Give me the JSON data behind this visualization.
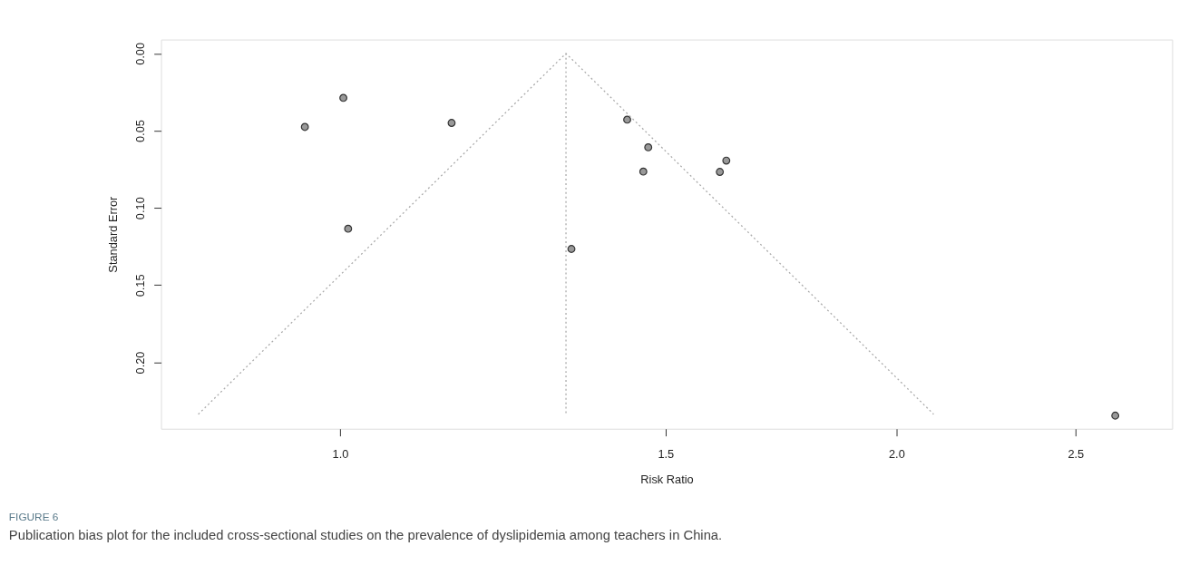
{
  "chart_data": {
    "type": "scatter",
    "xlabel": "Risk Ratio",
    "ylabel": "Standard Error",
    "annotations": [
      "FIGURE 6",
      "Publication bias plot for the included cross-sectional studies on the prevalence of dyslipidemia among teachers in China."
    ],
    "log": "x",
    "xlim": [
      0.8,
      2.82
    ],
    "ylim": [
      0.243,
      -0.009
    ],
    "xticks": [
      {
        "value": 1,
        "label": "1.0"
      },
      1.5,
      {
        "value": 2,
        "label": "2.0"
      },
      2.5
    ],
    "yticks": [
      {
        "value": 0,
        "label": "0.00"
      },
      0.05,
      {
        "value": 0.1,
        "label": "0.10"
      },
      0.15,
      {
        "value": 0.2,
        "label": "0.20"
      }
    ],
    "grid": false,
    "marker": "circle",
    "series": [
      {
        "color": "#999999",
        "x": [
          0.957,
          1.004,
          1.149,
          1.01,
          1.334,
          1.43,
          1.468,
          1.459,
          1.618,
          1.605,
          2.627
        ],
        "values": [
          0.0476,
          0.0288,
          0.045,
          0.1135,
          0.1266,
          0.0429,
          0.0608,
          0.0765,
          0.0694,
          0.0767,
          0.2345
        ]
      },
      {
        "type": "line",
        "color": "#aaaaaa",
        "line_style": "dotted",
        "marker": "none",
        "x": [
          0.838,
          1.325,
          2.095
        ],
        "values": [
          0.2336,
          0,
          0.2336
        ]
      },
      {
        "type": "line",
        "color": "#aaaaaa",
        "line_style": "dotted",
        "marker": "none",
        "x": [
          1.325,
          1.325
        ],
        "values": [
          0,
          0.2336
        ]
      }
    ]
  }
}
